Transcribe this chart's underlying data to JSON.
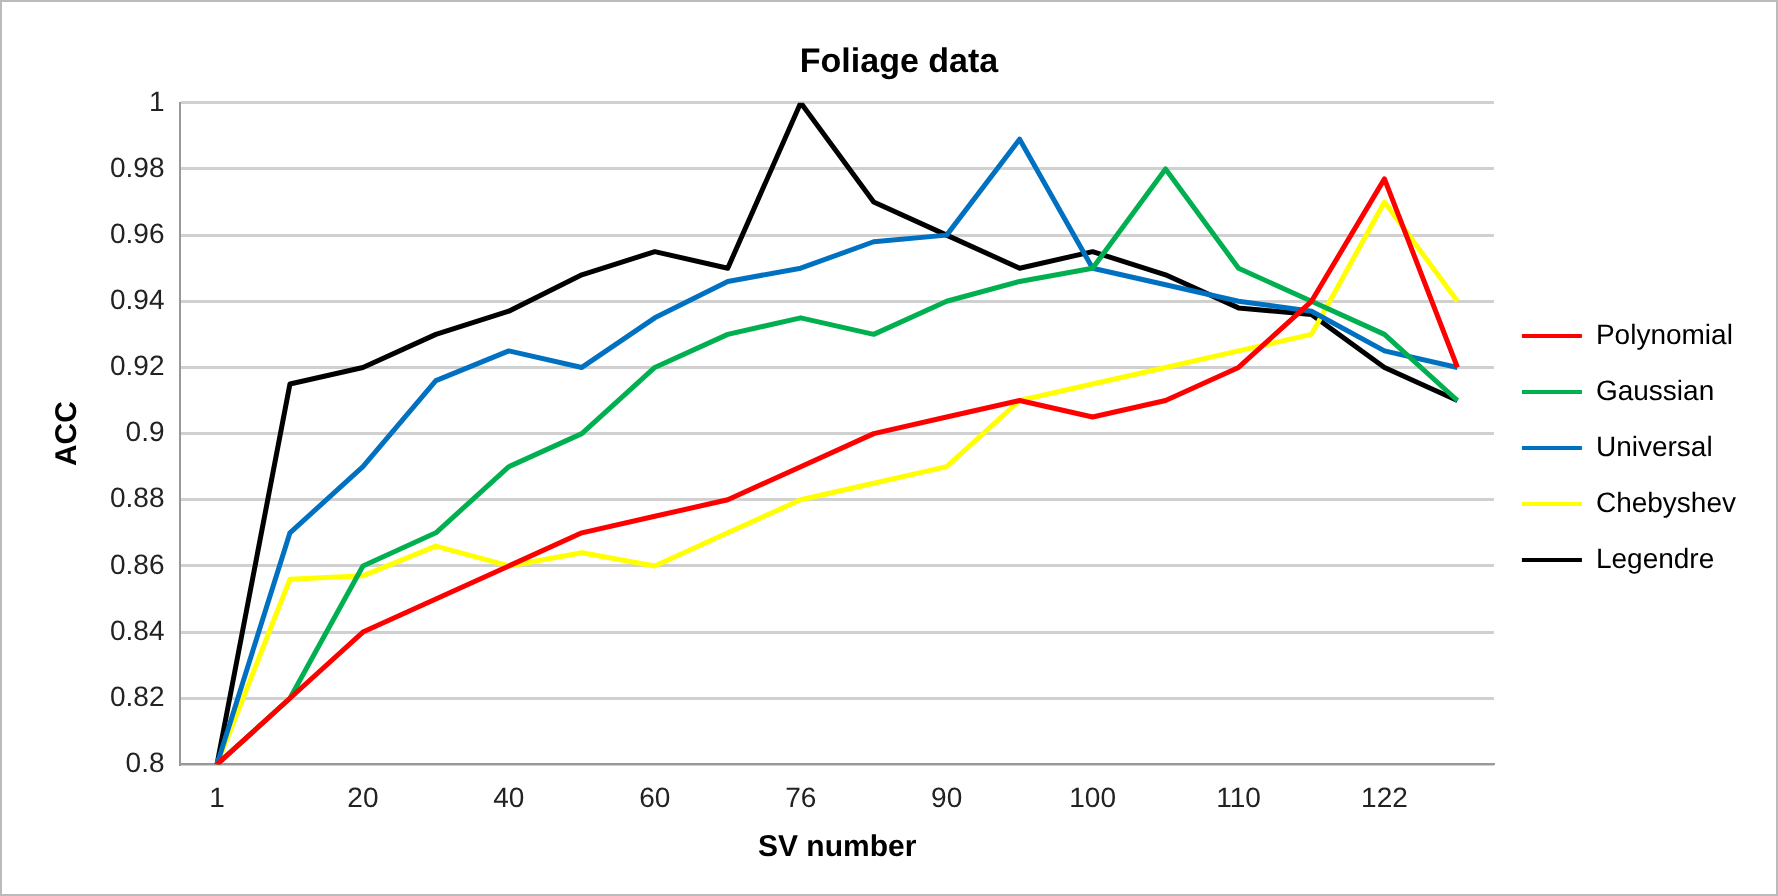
{
  "chart_data": {
    "type": "line",
    "title": "Foliage data",
    "xlabel": "SV number",
    "ylabel": "ACC",
    "categories": [
      "1",
      null,
      "20",
      null,
      "40",
      null,
      "60",
      null,
      "76",
      null,
      "90",
      null,
      "100",
      null,
      "110",
      null,
      "122",
      null
    ],
    "ylim": [
      0.8,
      1
    ],
    "yticks": [
      {
        "value": 0.8,
        "label": "0.8"
      },
      {
        "value": 0.82,
        "label": "0.82"
      },
      {
        "value": 0.84,
        "label": "0.84"
      },
      {
        "value": 0.86,
        "label": "0.86"
      },
      {
        "value": 0.88,
        "label": "0.88"
      },
      {
        "value": 0.9,
        "label": "0.9"
      },
      {
        "value": 0.92,
        "label": "0.92"
      },
      {
        "value": 0.94,
        "label": "0.94"
      },
      {
        "value": 0.96,
        "label": "0.96"
      },
      {
        "value": 0.98,
        "label": "0.98"
      },
      {
        "value": 1,
        "label": "1"
      }
    ],
    "grid": "y",
    "legend": "right",
    "marker": "none",
    "line_style": "solid",
    "series": [
      {
        "name": "Polynomial",
        "color": "#ff0000",
        "values": [
          0.8,
          0.82,
          0.84,
          0.85,
          0.86,
          0.87,
          0.875,
          0.88,
          0.89,
          0.9,
          0.905,
          0.91,
          0.905,
          0.91,
          0.92,
          0.94,
          0.977,
          0.92
        ]
      },
      {
        "name": "Gaussian",
        "color": "#00b050",
        "values": [
          0.8,
          0.82,
          0.86,
          0.87,
          0.89,
          0.9,
          0.92,
          0.93,
          0.935,
          0.93,
          0.94,
          0.946,
          0.95,
          0.98,
          0.95,
          0.94,
          0.93,
          0.91
        ]
      },
      {
        "name": "Universal",
        "color": "#0070c0",
        "values": [
          0.8,
          0.87,
          0.89,
          0.916,
          0.925,
          0.92,
          0.935,
          0.946,
          0.95,
          0.958,
          0.96,
          0.989,
          0.95,
          0.945,
          0.94,
          0.937,
          0.925,
          0.92
        ]
      },
      {
        "name": "Chebyshev",
        "color": "#ffff00",
        "values": [
          0.8,
          0.856,
          0.857,
          0.866,
          0.86,
          0.864,
          0.86,
          0.87,
          0.88,
          0.885,
          0.89,
          0.91,
          0.915,
          0.92,
          0.925,
          0.93,
          0.97,
          0.94
        ]
      },
      {
        "name": "Legendre",
        "color": "#000000",
        "values": [
          0.8,
          0.915,
          0.92,
          0.93,
          0.937,
          0.948,
          0.955,
          0.95,
          1.0,
          0.97,
          0.96,
          0.95,
          0.955,
          0.948,
          0.938,
          0.936,
          0.92,
          0.91
        ]
      }
    ]
  }
}
